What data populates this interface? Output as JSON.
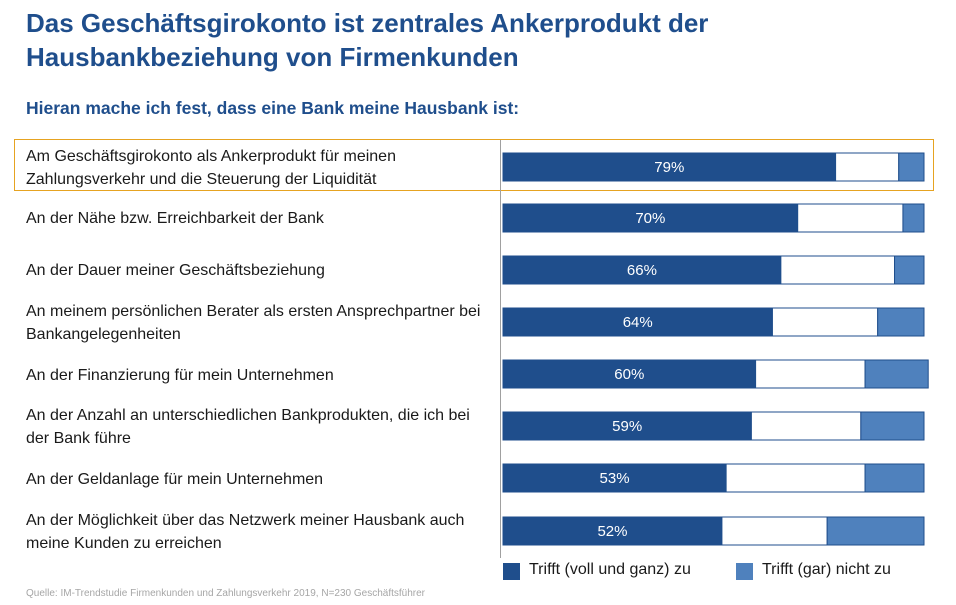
{
  "header": {
    "title": "Das Geschäftsgirokonto ist zentrales Ankerprodukt der Hausbankbeziehung von Firmenkunden",
    "subtitle": "Hieran mache ich fest, dass eine Bank meine Hausbank ist:"
  },
  "footer": {
    "source": "Quelle: IM-Trendstudie Firmenkunden und Zahlungsverkehr 2019, N=230 Geschäftsführer"
  },
  "colors": {
    "trifft_zu": "#1f4e8c",
    "neutral": "#ffffff",
    "trifft_nicht_zu": "#4f81bd",
    "highlight": "#e6a321"
  },
  "chart_data": {
    "type": "bar",
    "orientation": "horizontal",
    "stacked": true,
    "categories": [
      "Am Geschäftsgirokonto als Ankerprodukt für meinen Zahlungsverkehr und die Steuerung der Liquidität",
      "An der Nähe bzw. Erreichbarkeit der Bank",
      "An der Dauer meiner Geschäftsbeziehung",
      "An meinem persönlichen Berater als ersten Ansprechpartner bei Bankangelegenheiten",
      "An der Finanzierung für mein Unternehmen",
      "An der Anzahl an unterschiedlichen Bankprodukten, die ich bei der Bank führe",
      "An der Geldanlage für mein Unternehmen",
      "An der Möglichkeit über das Netzwerk meiner Hausbank auch meine Kunden zu erreichen"
    ],
    "series": [
      {
        "name": "Trifft (voll und ganz) zu",
        "values": [
          79,
          70,
          66,
          64,
          60,
          59,
          53,
          52
        ],
        "labels": [
          "79%",
          "70%",
          "66%",
          "64%",
          "60%",
          "59%",
          "53%",
          "52%"
        ]
      },
      {
        "values": [
          15,
          25,
          27,
          25,
          26,
          26,
          33,
          25
        ]
      },
      {
        "name": "Trifft (gar) nicht zu",
        "values": [
          6,
          5,
          7,
          11,
          15,
          15,
          14,
          23
        ]
      }
    ],
    "legend": [
      "Trifft (voll und ganz) zu",
      "Trifft (gar) nicht zu"
    ],
    "legend_position": "bottom-right",
    "highlighted_category": 0,
    "xlim": [
      0,
      100
    ]
  }
}
